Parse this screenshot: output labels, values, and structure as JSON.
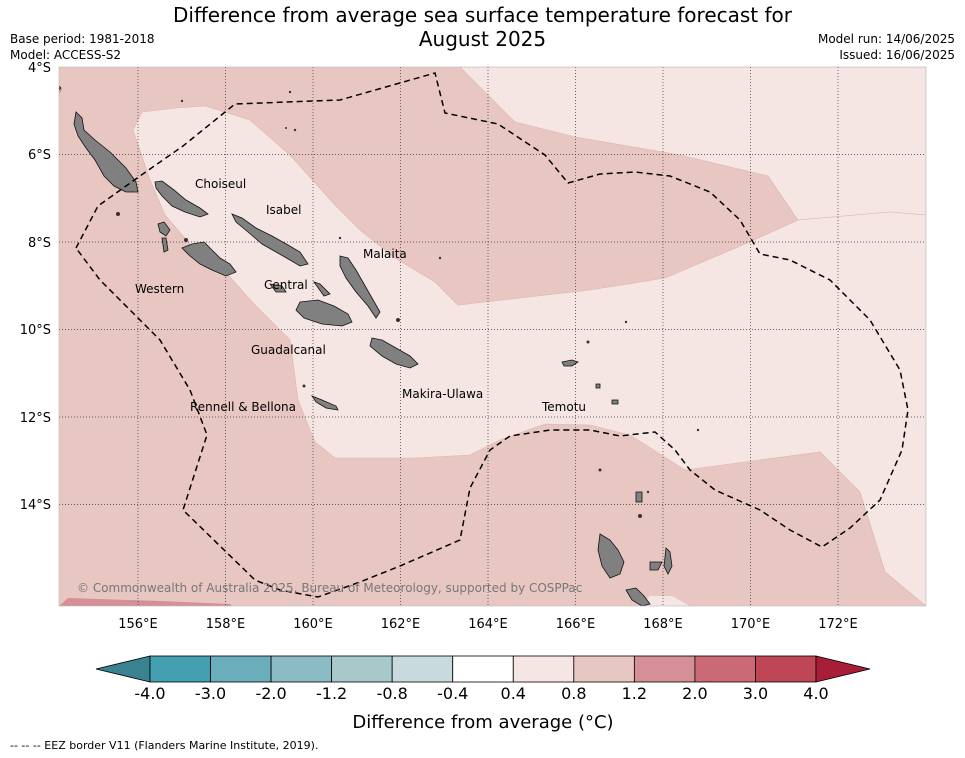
{
  "title_line1": "Difference from average sea surface temperature forecast for",
  "title_line2": "August 2025",
  "base_period": "Base period: 1981-2018",
  "model": "Model: ACCESS-S2",
  "model_run": "Model run: 14/06/2025",
  "issued": "Issued: 16/06/2025",
  "lat_labels": [
    "4°S",
    "6°S",
    "8°S",
    "10°S",
    "12°S",
    "14°S"
  ],
  "lon_labels": [
    "156°E",
    "158°E",
    "160°E",
    "162°E",
    "164°E",
    "166°E",
    "168°E",
    "170°E",
    "172°E"
  ],
  "places": [
    "Choiseul",
    "Isabel",
    "Malaita",
    "Western",
    "Central",
    "Guadalcanal",
    "Makira-Ulawa",
    "Rennell & Bellona",
    "Temotu"
  ],
  "credit": "© Commonwealth of Australia 2025, Bureau of Meteorology, supported by COSPPac",
  "colorbar": {
    "ticks": [
      "-4.0",
      "-3.0",
      "-2.0",
      "-1.2",
      "-0.8",
      "-0.4",
      "0.4",
      "0.8",
      "1.2",
      "2.0",
      "3.0",
      "4.0"
    ],
    "colors": [
      "#449fb1",
      "#6aadbb",
      "#8bbbc5",
      "#a8c9cc",
      "#c8dadd",
      "#ffffff",
      "#f5e6e4",
      "#e8c7c2",
      "#d58f96",
      "#cb6a76",
      "#bf4655"
    ],
    "under_color": "#3a8290",
    "over_color": "#a81e38",
    "label": "Difference from average (°C)"
  },
  "footer": "--  --  -- EEZ border V11 (Flanders Marine Institute, 2019).",
  "colors": {
    "land": "#808080",
    "anomaly_0_4_to_0_8": "#f5e6e4",
    "anomaly_0_8_to_1_2": "#e8c7c2",
    "anomaly_1_2_to_2_0": "#d58f96"
  }
}
